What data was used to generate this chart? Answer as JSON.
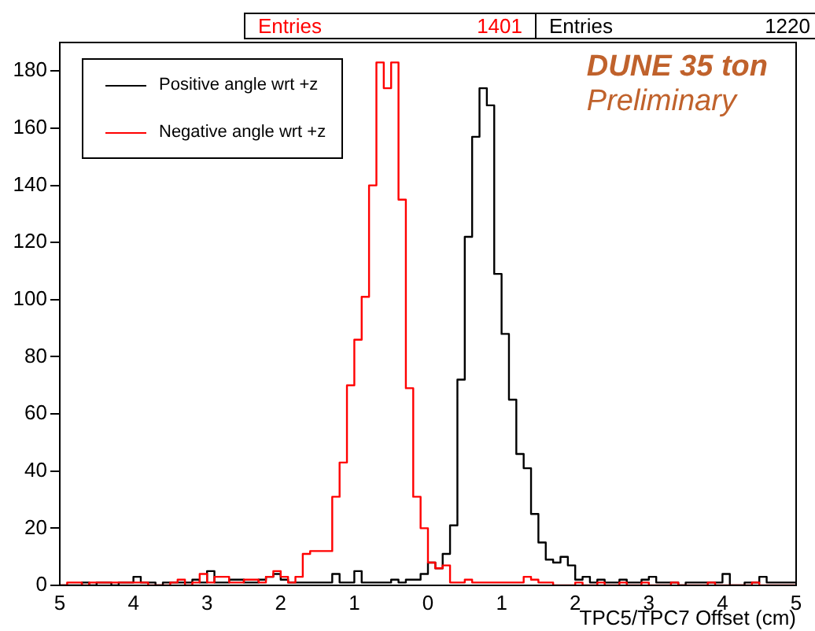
{
  "chart_data": {
    "type": "histogram",
    "xlabel": "TPC5/TPC7 Offset (cm)",
    "bins": [
      -5,
      -4.9,
      -4.8,
      -4.7,
      -4.6,
      -4.5,
      -4.4,
      -4.3,
      -4.2,
      -4.1,
      -4,
      -3.9,
      -3.8,
      -3.7,
      -3.6,
      -3.5,
      -3.4,
      -3.3,
      -3.2,
      -3.1,
      -3,
      -2.9,
      -2.8,
      -2.7,
      -2.6,
      -2.5,
      -2.4,
      -2.3,
      -2.2,
      -2.1,
      -2,
      -1.9,
      -1.8,
      -1.7,
      -1.6,
      -1.5,
      -1.4,
      -1.3,
      -1.2,
      -1.1,
      -1,
      -0.9,
      -0.8,
      -0.7,
      -0.6,
      -0.5,
      -0.4,
      -0.3,
      -0.2,
      -0.1,
      0,
      0.1,
      0.2,
      0.3,
      0.4,
      0.5,
      0.6,
      0.7,
      0.8,
      0.9,
      1,
      1.1,
      1.2,
      1.3,
      1.4,
      1.5,
      1.6,
      1.7,
      1.8,
      1.9,
      2,
      2.1,
      2.2,
      2.3,
      2.4,
      2.5,
      2.6,
      2.7,
      2.8,
      2.9,
      3,
      3.1,
      3.2,
      3.3,
      3.4,
      3.5,
      3.6,
      3.7,
      3.8,
      3.9,
      4,
      4.1,
      4.2,
      4.3,
      4.4,
      4.5,
      4.6,
      4.7,
      4.8,
      4.9,
      5
    ],
    "series": [
      {
        "name": "Negative angle wrt +z",
        "color": "#ff0000",
        "values": [
          0,
          1,
          1,
          0,
          1,
          1,
          1,
          1,
          1,
          1,
          1,
          1,
          0,
          0,
          0,
          1,
          2,
          0,
          1,
          4,
          1,
          3,
          3,
          1,
          1,
          2,
          2,
          1,
          3,
          5,
          3,
          1,
          3,
          11,
          12,
          12,
          12,
          31,
          43,
          70,
          86,
          101,
          140,
          183,
          174,
          183,
          135,
          69,
          31,
          20,
          8,
          6,
          7,
          1,
          1,
          2,
          1,
          1,
          1,
          1,
          1,
          1,
          1,
          3,
          2,
          1,
          1,
          0,
          0,
          0,
          1,
          0,
          0,
          1,
          0,
          0,
          1,
          0,
          0,
          1,
          0,
          0,
          0,
          1,
          0,
          0,
          0,
          0,
          1,
          0,
          0,
          0,
          0,
          0,
          1,
          0,
          0,
          0,
          0,
          0
        ]
      },
      {
        "name": "Positive angle wrt +z",
        "color": "#000000",
        "values": [
          0,
          0,
          0,
          1,
          0,
          1,
          1,
          0,
          1,
          1,
          3,
          1,
          1,
          0,
          1,
          1,
          1,
          1,
          2,
          1,
          5,
          1,
          1,
          2,
          2,
          1,
          1,
          2,
          3,
          4,
          2,
          1,
          1,
          1,
          1,
          1,
          1,
          4,
          1,
          1,
          5,
          1,
          1,
          1,
          1,
          2,
          1,
          2,
          2,
          4,
          8,
          6,
          11,
          21,
          72,
          122,
          157,
          174,
          168,
          109,
          88,
          65,
          46,
          41,
          25,
          15,
          9,
          8,
          10,
          7,
          2,
          3,
          1,
          2,
          1,
          1,
          2,
          1,
          1,
          2,
          3,
          1,
          1,
          1,
          0,
          1,
          1,
          1,
          1,
          1,
          4,
          0,
          0,
          1,
          1,
          3,
          1,
          1,
          1,
          1
        ]
      }
    ],
    "xlim": [
      -5,
      5
    ],
    "xticks": [
      {
        "value": -5,
        "label": "5"
      },
      {
        "value": -4,
        "label": "4"
      },
      {
        "value": -3,
        "label": "3"
      },
      {
        "value": -2,
        "label": "2"
      },
      {
        "value": -1,
        "label": "1"
      },
      0,
      1,
      2,
      3,
      4,
      5
    ],
    "ylim": [
      0,
      190
    ],
    "yticks": [
      0,
      20,
      40,
      60,
      80,
      100,
      120,
      140,
      160,
      180
    ],
    "legend": "top left",
    "annotations": [
      "Entries 1401",
      "Entries 1220",
      "DUNE 35 ton",
      "Preliminary"
    ]
  }
}
